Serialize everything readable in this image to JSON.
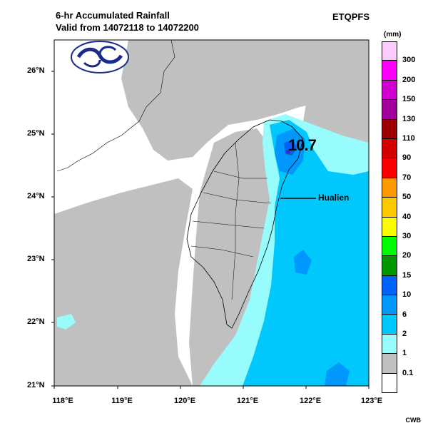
{
  "header": {
    "title_line1": "6-hr Accumulated Rainfall",
    "title_line2": "Valid from 14072118 to 14072200",
    "model": "ETQPFS",
    "credit": "CWB"
  },
  "map": {
    "lat_labels": [
      "26°N",
      "25°N",
      "24°N",
      "23°N",
      "22°N",
      "21°N"
    ],
    "lon_labels": [
      "118°E",
      "119°E",
      "120°E",
      "121°E",
      "122°E",
      "123°E"
    ],
    "max_value_label": "10.7",
    "location_label": "Hualien"
  },
  "legend": {
    "unit": "(mm)",
    "thresholds": [
      "300",
      "200",
      "150",
      "130",
      "110",
      "90",
      "70",
      "50",
      "40",
      "30",
      "20",
      "15",
      "10",
      "6",
      "2",
      "1",
      "0.1"
    ],
    "colors": [
      "#fccbfc",
      "#fc00fc",
      "#d000d0",
      "#a0009c",
      "#9c0000",
      "#d40000",
      "#fc0000",
      "#fc9800",
      "#fcc800",
      "#fcfc00",
      "#00fc00",
      "#009800",
      "#0064fc",
      "#0098fc",
      "#00c8fc",
      "#99fcfc",
      "#c0c0c0",
      "#ffffff"
    ]
  }
}
